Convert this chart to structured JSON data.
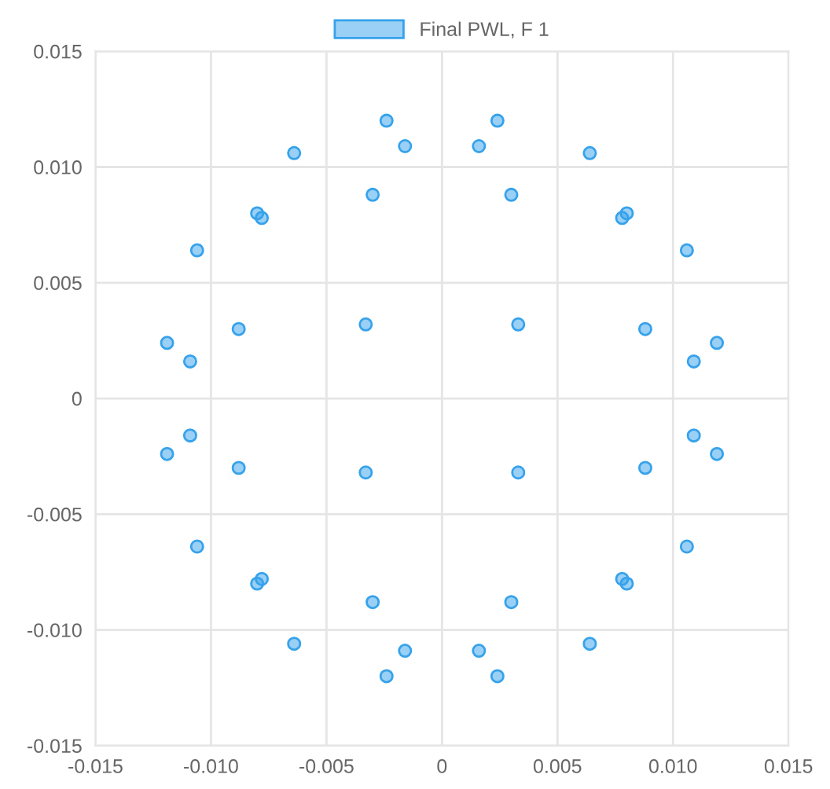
{
  "chart_data": {
    "type": "scatter",
    "legend": "top",
    "grid": true,
    "marker": "circle",
    "xlim": [
      -0.015,
      0.015
    ],
    "ylim": [
      -0.015,
      0.015
    ],
    "xticks": [
      {
        "value": -0.015,
        "label": "-0.015"
      },
      {
        "value": -0.01,
        "label": "-0.010"
      },
      {
        "value": -0.005,
        "label": "-0.005"
      },
      0,
      {
        "value": 0.005,
        "label": "0.005"
      },
      {
        "value": 0.01,
        "label": "0.010"
      },
      {
        "value": 0.015,
        "label": "0.015"
      }
    ],
    "yticks": [
      {
        "value": -0.015,
        "label": "-0.015"
      },
      {
        "value": -0.01,
        "label": "-0.010"
      },
      {
        "value": -0.005,
        "label": "-0.005"
      },
      0,
      {
        "value": 0.005,
        "label": "0.005"
      },
      {
        "value": 0.01,
        "label": "0.010"
      },
      {
        "value": 0.015,
        "label": "0.015"
      }
    ],
    "series": [
      {
        "name": "Final PWL, F 1",
        "color": "#36a2eb",
        "x": [
          -0.0119,
          -0.0109,
          -0.0088,
          -0.0106,
          -0.008,
          -0.0078,
          -0.0064,
          -0.0033,
          -0.003,
          -0.0024,
          -0.0016,
          0.0119,
          0.0109,
          0.0088,
          0.0106,
          0.008,
          0.0078,
          0.0064,
          0.0033,
          0.003,
          0.0024,
          0.0016,
          -0.0119,
          -0.0109,
          -0.0088,
          -0.0106,
          -0.008,
          -0.0078,
          -0.0064,
          -0.0033,
          -0.003,
          -0.0024,
          -0.0016,
          0.0119,
          0.0109,
          0.0088,
          0.0106,
          0.008,
          0.0078,
          0.0064,
          0.0033,
          0.003,
          0.0024,
          0.0016
        ],
        "values": [
          0.0024,
          0.0016,
          0.003,
          0.0064,
          0.008,
          0.0078,
          0.0106,
          0.0032,
          0.0088,
          0.012,
          0.0109,
          0.0024,
          0.0016,
          0.003,
          0.0064,
          0.008,
          0.0078,
          0.0106,
          0.0032,
          0.0088,
          0.012,
          0.0109,
          -0.0024,
          -0.0016,
          -0.003,
          -0.0064,
          -0.008,
          -0.0078,
          -0.0106,
          -0.0032,
          -0.0088,
          -0.012,
          -0.0109,
          -0.0024,
          -0.0016,
          -0.003,
          -0.0064,
          -0.008,
          -0.0078,
          -0.0106,
          -0.0032,
          -0.0088,
          -0.012,
          -0.0109
        ]
      }
    ]
  }
}
